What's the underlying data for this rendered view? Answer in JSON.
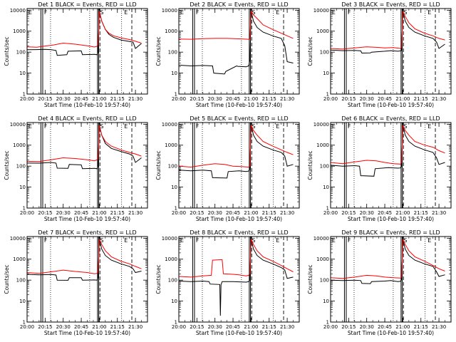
{
  "layout": {
    "columns": 3,
    "rows": 3
  },
  "colors": {
    "events": "#000000",
    "lld": "#ff0000",
    "frame": "#000000"
  },
  "axes": {
    "xlabel": "Start Time (10-Feb-10 19:57:40)",
    "ylabel": "Counts/sec",
    "x_ticks": [
      "20:00",
      "20:15",
      "20:30",
      "20:45",
      "21:00",
      "21:15",
      "21:30"
    ],
    "x_tick_min": [
      0,
      15,
      30,
      45,
      60,
      75,
      90
    ],
    "xlim_min": [
      0,
      100
    ],
    "y_ticks": [
      "1",
      "10",
      "100",
      "1000",
      "10000"
    ],
    "y_tick_vals": [
      1,
      10,
      100,
      1000,
      10000
    ],
    "ylim": [
      1,
      12000
    ],
    "yscale": "log"
  },
  "markers": {
    "solid": [
      11.5,
      13,
      58.5,
      59.5
    ],
    "dotted": [
      19.5,
      52,
      78.5
    ],
    "dashed": [
      60.5,
      87
    ],
    "letters": [
      {
        "text": "E",
        "x": 0.5
      },
      {
        "text": "F",
        "x": 13.5
      },
      {
        "text": "S",
        "x": 60
      },
      {
        "text": "E",
        "x": 80
      }
    ]
  },
  "chart_data": [
    {
      "type": "line",
      "title": "Det 1 BLACK = Events, RED = LLD",
      "series": [
        {
          "name": "Events",
          "color": "#000000",
          "x": [
            0,
            8,
            15,
            20,
            24,
            25,
            33,
            34,
            45,
            46,
            56,
            58,
            59,
            60,
            62,
            65,
            68,
            72,
            78,
            85,
            88,
            90,
            95
          ],
          "y": [
            130,
            132,
            135,
            130,
            120,
            70,
            75,
            110,
            115,
            75,
            78,
            75,
            100,
            9000,
            3000,
            1200,
            700,
            500,
            380,
            320,
            300,
            150,
            260
          ]
        },
        {
          "name": "LLD",
          "color": "#ff0000",
          "x": [
            0,
            8,
            15,
            22,
            30,
            40,
            50,
            56,
            58,
            59,
            60,
            62,
            65,
            68,
            72,
            78,
            85,
            90,
            95
          ],
          "y": [
            180,
            172,
            195,
            220,
            270,
            240,
            200,
            175,
            190,
            230,
            9000,
            3000,
            1200,
            800,
            600,
            480,
            400,
            330,
            270
          ]
        }
      ]
    },
    {
      "type": "line",
      "title": "Det 2 BLACK = Events, RED = LLD",
      "series": [
        {
          "name": "Events",
          "color": "#000000",
          "x": [
            0,
            10,
            20,
            28,
            29,
            38,
            39,
            48,
            49,
            56,
            58,
            59,
            60,
            62,
            65,
            70,
            78,
            85,
            88,
            90,
            95
          ],
          "y": [
            24,
            22,
            23,
            22,
            10,
            9,
            12,
            22,
            21,
            20,
            22,
            40,
            9000,
            3000,
            1500,
            900,
            600,
            450,
            200,
            35,
            30
          ]
        },
        {
          "name": "LLD",
          "color": "#ff0000",
          "x": [
            0,
            10,
            20,
            30,
            40,
            50,
            58,
            59,
            60,
            62,
            65,
            70,
            78,
            85,
            90,
            95
          ],
          "y": [
            420,
            410,
            440,
            450,
            450,
            430,
            410,
            420,
            9000,
            6000,
            4000,
            2000,
            1200,
            800,
            600,
            450
          ]
        }
      ]
    },
    {
      "type": "line",
      "title": "Det 3 BLACK = Events, RED = LLD",
      "series": [
        {
          "name": "Events",
          "color": "#000000",
          "x": [
            0,
            10,
            20,
            25,
            26,
            33,
            34,
            45,
            50,
            56,
            58,
            59,
            60,
            62,
            65,
            70,
            78,
            85,
            88,
            90,
            95
          ],
          "y": [
            125,
            118,
            120,
            115,
            90,
            92,
            100,
            110,
            118,
            110,
            115,
            120,
            9000,
            3000,
            1500,
            900,
            600,
            450,
            300,
            150,
            240
          ]
        },
        {
          "name": "LLD",
          "color": "#ff0000",
          "x": [
            0,
            10,
            20,
            30,
            38,
            45,
            52,
            58,
            59,
            60,
            62,
            65,
            70,
            78,
            85,
            90,
            95
          ],
          "y": [
            150,
            140,
            160,
            180,
            170,
            160,
            165,
            150,
            170,
            9000,
            5000,
            2500,
            1300,
            800,
            600,
            450,
            380
          ]
        }
      ]
    },
    {
      "type": "line",
      "title": "Det 4 BLACK = Events, RED = LLD",
      "series": [
        {
          "name": "Events",
          "color": "#000000",
          "x": [
            0,
            10,
            20,
            24,
            25,
            34,
            35,
            45,
            46,
            56,
            58,
            59,
            60,
            62,
            65,
            70,
            78,
            85,
            88,
            90,
            95
          ],
          "y": [
            140,
            138,
            150,
            140,
            80,
            78,
            120,
            115,
            75,
            78,
            75,
            100,
            9000,
            3000,
            1200,
            700,
            500,
            380,
            300,
            150,
            250
          ]
        },
        {
          "name": "LLD",
          "color": "#ff0000",
          "x": [
            0,
            10,
            20,
            30,
            40,
            50,
            56,
            58,
            59,
            60,
            62,
            65,
            70,
            78,
            85,
            90,
            95
          ],
          "y": [
            170,
            165,
            200,
            250,
            230,
            200,
            180,
            200,
            230,
            9000,
            3000,
            1500,
            900,
            600,
            450,
            380,
            300
          ]
        }
      ]
    },
    {
      "type": "line",
      "title": "Det 5 BLACK = Events, RED = LLD",
      "series": [
        {
          "name": "Events",
          "color": "#000000",
          "x": [
            0,
            10,
            20,
            27,
            28,
            40,
            41,
            50,
            56,
            58,
            59,
            60,
            62,
            65,
            70,
            78,
            85,
            88,
            90,
            95
          ],
          "y": [
            65,
            60,
            65,
            60,
            28,
            27,
            55,
            60,
            55,
            58,
            70,
            9000,
            3000,
            1500,
            900,
            600,
            450,
            300,
            100,
            120
          ]
        },
        {
          "name": "LLD",
          "color": "#ff0000",
          "x": [
            0,
            10,
            20,
            30,
            38,
            45,
            52,
            58,
            59,
            60,
            62,
            65,
            70,
            78,
            85,
            90,
            95
          ],
          "y": [
            100,
            90,
            110,
            130,
            120,
            100,
            95,
            90,
            100,
            9000,
            5000,
            3000,
            1500,
            900,
            600,
            450,
            350
          ]
        }
      ]
    },
    {
      "type": "line",
      "title": "Det 6 BLACK = Events, RED = LLD",
      "series": [
        {
          "name": "Events",
          "color": "#000000",
          "x": [
            0,
            10,
            20,
            24,
            25,
            36,
            37,
            48,
            56,
            58,
            59,
            60,
            62,
            65,
            70,
            78,
            85,
            88,
            90,
            95
          ],
          "y": [
            110,
            100,
            105,
            100,
            35,
            33,
            75,
            85,
            80,
            82,
            100,
            9000,
            3000,
            1500,
            900,
            600,
            450,
            250,
            120,
            150
          ]
        },
        {
          "name": "LLD",
          "color": "#ff0000",
          "x": [
            0,
            10,
            20,
            30,
            38,
            45,
            52,
            58,
            59,
            60,
            62,
            65,
            70,
            78,
            85,
            90,
            95
          ],
          "y": [
            150,
            130,
            160,
            190,
            180,
            150,
            130,
            125,
            150,
            9000,
            5000,
            3000,
            1500,
            1000,
            800,
            550,
            420
          ]
        }
      ]
    },
    {
      "type": "line",
      "title": "Det 7 BLACK = Events, RED = LLD",
      "series": [
        {
          "name": "Events",
          "color": "#000000",
          "x": [
            0,
            10,
            20,
            24,
            25,
            34,
            35,
            45,
            46,
            56,
            58,
            59,
            60,
            62,
            65,
            70,
            78,
            85,
            88,
            90,
            95
          ],
          "y": [
            190,
            180,
            185,
            175,
            100,
            98,
            130,
            130,
            100,
            102,
            100,
            130,
            9000,
            3000,
            1500,
            900,
            600,
            450,
            350,
            230,
            270
          ]
        },
        {
          "name": "LLD",
          "color": "#ff0000",
          "x": [
            0,
            10,
            20,
            30,
            40,
            50,
            56,
            58,
            59,
            60,
            62,
            65,
            70,
            78,
            85,
            90,
            95
          ],
          "y": [
            230,
            210,
            250,
            300,
            260,
            230,
            200,
            210,
            250,
            9000,
            5000,
            2500,
            1300,
            800,
            600,
            450,
            350
          ]
        }
      ]
    },
    {
      "type": "line",
      "title": "Det 8 BLACK = Events, RED = LLD",
      "series": [
        {
          "name": "Events",
          "color": "#000000",
          "x": [
            0,
            10,
            20,
            25,
            26,
            34,
            34.5,
            35,
            36,
            45,
            56,
            58,
            59,
            60,
            62,
            65,
            70,
            78,
            85,
            88,
            90,
            95
          ],
          "y": [
            90,
            85,
            90,
            85,
            65,
            62,
            2,
            60,
            85,
            85,
            80,
            85,
            100,
            9000,
            3000,
            1500,
            900,
            600,
            400,
            300,
            120,
            140
          ]
        },
        {
          "name": "LLD",
          "color": "#ff0000",
          "x": [
            0,
            10,
            20,
            27,
            28,
            36,
            37,
            45,
            50,
            56,
            58,
            59,
            60,
            62,
            65,
            70,
            78,
            85,
            90,
            95
          ],
          "y": [
            150,
            140,
            160,
            170,
            900,
            950,
            200,
            190,
            180,
            160,
            170,
            220,
            9000,
            5000,
            2500,
            1300,
            800,
            500,
            350,
            250
          ]
        }
      ]
    },
    {
      "type": "line",
      "title": "Det 9 BLACK = Events, RED = LLD",
      "series": [
        {
          "name": "Events",
          "color": "#000000",
          "x": [
            0,
            10,
            20,
            25,
            26,
            33,
            34,
            45,
            50,
            56,
            58,
            59,
            60,
            62,
            65,
            70,
            78,
            85,
            88,
            90,
            95
          ],
          "y": [
            100,
            95,
            100,
            95,
            70,
            68,
            85,
            90,
            95,
            85,
            88,
            105,
            9000,
            3000,
            1500,
            900,
            600,
            450,
            250,
            150,
            180
          ]
        },
        {
          "name": "LLD",
          "color": "#ff0000",
          "x": [
            0,
            10,
            20,
            30,
            38,
            45,
            52,
            58,
            59,
            60,
            62,
            65,
            70,
            78,
            85,
            90,
            95
          ],
          "y": [
            130,
            120,
            140,
            170,
            160,
            140,
            130,
            125,
            140,
            9000,
            5000,
            2500,
            1300,
            800,
            500,
            350,
            270
          ]
        }
      ]
    }
  ]
}
